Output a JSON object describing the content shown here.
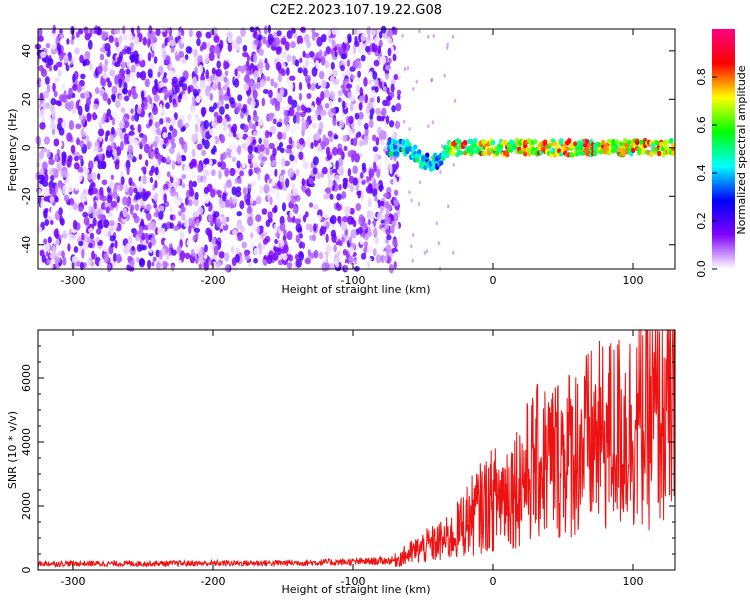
{
  "title": "C2E2.2023.107.19.22.G08",
  "chart_data": [
    {
      "type": "heatmap",
      "xlabel": "Height of straight line (km)",
      "ylabel": "Frequency (Hz)",
      "xlim": [
        -325,
        130
      ],
      "ylim": [
        -50,
        49
      ],
      "xticks": [
        -300,
        -200,
        -100,
        0,
        100
      ],
      "yticks": [
        -40,
        -20,
        0,
        20,
        40
      ],
      "noise_region_x": [
        -325,
        -67
      ],
      "signal_band_hz": [
        -3,
        3
      ],
      "colorbar": {
        "label": "Normalized spectral amplitude",
        "range": [
          0.0,
          1.0
        ],
        "ticks": [
          "0.0",
          "0.2",
          "0.4",
          "0.6",
          "0.8"
        ],
        "colors": [
          "#ffffff",
          "#8000ff",
          "#0000ff",
          "#00ffff",
          "#00ff00",
          "#ffff00",
          "#ff0000",
          "#ff0080"
        ]
      }
    },
    {
      "type": "line",
      "xlabel": "Height of straight line (km)",
      "ylabel": "SNR (10 * v/v)",
      "xlim": [
        -325,
        130
      ],
      "ylim": [
        0,
        7500
      ],
      "xticks": [
        -300,
        -200,
        -100,
        0,
        100
      ],
      "yticks": [
        0,
        2000,
        4000,
        6000
      ],
      "color": "#ee1111",
      "series_profile": [
        {
          "x": -325,
          "y": 200
        },
        {
          "x": -250,
          "y": 200
        },
        {
          "x": -150,
          "y": 220
        },
        {
          "x": -100,
          "y": 250
        },
        {
          "x": -70,
          "y": 300
        },
        {
          "x": -50,
          "y": 700
        },
        {
          "x": -30,
          "y": 1000
        },
        {
          "x": -20,
          "y": 1500
        },
        {
          "x": -10,
          "y": 1900
        },
        {
          "x": 0,
          "y": 2200
        },
        {
          "x": 15,
          "y": 2600
        },
        {
          "x": 30,
          "y": 3300
        },
        {
          "x": 50,
          "y": 3600
        },
        {
          "x": 70,
          "y": 4000
        },
        {
          "x": 90,
          "y": 4300
        },
        {
          "x": 110,
          "y": 4700
        },
        {
          "x": 130,
          "y": 5000
        }
      ]
    }
  ]
}
